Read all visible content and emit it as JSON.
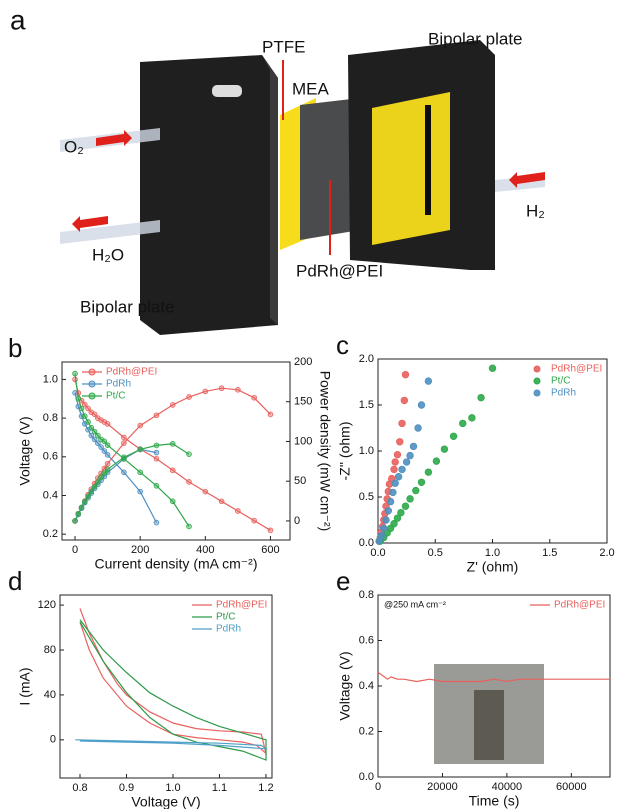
{
  "schematic": {
    "panel_label": "a",
    "labels": {
      "ptfe": "PTFE",
      "mea": "MEA",
      "bipolar_top": "Bipolar plate",
      "o2": "O₂",
      "h2o": "H₂O",
      "h2": "H₂",
      "catalyst": "PdRh@PEI",
      "bipolar_bottom": "Bipolar plate"
    }
  },
  "chart_data": [
    {
      "type": "line",
      "panel_label": "b",
      "xlabel": "Current density (mA cm⁻²)",
      "ylabel": "Voltage (V)",
      "y2label": "Power density (mW cm⁻²)",
      "xlim": [
        -40,
        660
      ],
      "xticks": [
        0,
        200,
        400,
        600
      ],
      "ylim": [
        0.17,
        1.09
      ],
      "yticks": [
        0.2,
        0.4,
        0.6,
        0.8,
        {
          "value": 1.0,
          "label": "1.0"
        }
      ],
      "y2lim": [
        -24,
        200
      ],
      "y2ticks": [
        0,
        50,
        100,
        150,
        200
      ],
      "legend": "upper left",
      "markers": true,
      "series": [
        {
          "name": "PdRh@PEI",
          "color": "#e8615d",
          "x": [
            0,
            10,
            20,
            30,
            40,
            50,
            60,
            70,
            80,
            90,
            100,
            150,
            200,
            250,
            300,
            350,
            400,
            450,
            500,
            550,
            600
          ],
          "values": [
            1.0,
            0.93,
            0.89,
            0.87,
            0.85,
            0.83,
            0.82,
            0.8,
            0.79,
            0.78,
            0.77,
            0.7,
            0.64,
            0.59,
            0.53,
            0.47,
            0.42,
            0.37,
            0.32,
            0.27,
            0.22
          ],
          "y2_values": [
            0,
            9,
            17,
            25,
            33,
            40,
            47,
            54,
            60,
            66,
            72,
            98,
            120,
            133,
            146,
            156,
            163,
            167,
            165,
            155,
            134
          ]
        },
        {
          "name": "PdRh",
          "color": "#4f8fc0",
          "x": [
            0,
            10,
            20,
            30,
            40,
            50,
            60,
            70,
            80,
            90,
            100,
            150,
            200,
            250
          ],
          "values": [
            0.93,
            0.86,
            0.81,
            0.77,
            0.74,
            0.71,
            0.69,
            0.67,
            0.65,
            0.63,
            0.61,
            0.52,
            0.42,
            0.26
          ],
          "y2_values": [
            0,
            8,
            16,
            23,
            29,
            35,
            41,
            46,
            51,
            56,
            61,
            78,
            90,
            86
          ]
        },
        {
          "name": "Pt/C",
          "color": "#2ea84a",
          "x": [
            0,
            10,
            20,
            30,
            40,
            50,
            60,
            70,
            80,
            90,
            100,
            150,
            200,
            250,
            300,
            350
          ],
          "values": [
            1.03,
            0.9,
            0.85,
            0.81,
            0.78,
            0.75,
            0.73,
            0.71,
            0.69,
            0.68,
            0.66,
            0.59,
            0.52,
            0.45,
            0.37,
            0.24
          ],
          "y2_values": [
            0,
            9,
            17,
            24,
            31,
            37,
            43,
            49,
            55,
            60,
            65,
            80,
            90,
            95,
            97,
            84
          ]
        }
      ]
    },
    {
      "type": "scatter",
      "panel_label": "c",
      "xlabel": "Z' (ohm)",
      "ylabel": "-Z'' (ohm)",
      "xlim": [
        0,
        2
      ],
      "xticks": [
        {
          "value": 0,
          "label": "0.0"
        },
        0.5,
        {
          "value": 1,
          "label": "1.0"
        },
        1.5,
        {
          "value": 2,
          "label": "2.0"
        }
      ],
      "ylim": [
        0,
        2
      ],
      "yticks": [
        {
          "value": 0,
          "label": "0.0"
        },
        0.5,
        {
          "value": 1,
          "label": "1.0"
        },
        1.5,
        {
          "value": 2,
          "label": "2.0"
        }
      ],
      "legend": "upper right",
      "markers": true,
      "series": [
        {
          "name": "PdRh@PEI",
          "color": "#e8615d",
          "x": [
            0.01,
            0.02,
            0.03,
            0.04,
            0.05,
            0.06,
            0.07,
            0.08,
            0.09,
            0.1,
            0.12,
            0.14,
            0.15,
            0.17,
            0.19,
            0.21,
            0.23,
            0.24
          ],
          "values": [
            0.02,
            0.06,
            0.12,
            0.18,
            0.25,
            0.32,
            0.4,
            0.48,
            0.56,
            0.64,
            0.7,
            0.8,
            0.88,
            0.96,
            1.1,
            1.3,
            1.55,
            1.83
          ]
        },
        {
          "name": "Pt/C",
          "color": "#2ea84a",
          "x": [
            0.02,
            0.05,
            0.08,
            0.11,
            0.14,
            0.17,
            0.2,
            0.24,
            0.28,
            0.33,
            0.38,
            0.44,
            0.51,
            0.58,
            0.66,
            0.74,
            0.82,
            0.9,
            1.0
          ],
          "values": [
            0.02,
            0.06,
            0.11,
            0.16,
            0.21,
            0.27,
            0.33,
            0.4,
            0.48,
            0.57,
            0.66,
            0.77,
            0.89,
            1.02,
            1.16,
            1.3,
            1.36,
            1.58,
            1.9
          ]
        },
        {
          "name": "PdRh",
          "color": "#4f8fc0",
          "x": [
            0.01,
            0.03,
            0.05,
            0.07,
            0.09,
            0.11,
            0.13,
            0.15,
            0.18,
            0.21,
            0.25,
            0.28,
            0.31,
            0.35,
            0.38,
            0.44
          ],
          "values": [
            0.02,
            0.08,
            0.16,
            0.25,
            0.35,
            0.45,
            0.55,
            0.65,
            0.72,
            0.8,
            0.88,
            0.95,
            1.05,
            1.25,
            1.5,
            1.76
          ]
        }
      ]
    },
    {
      "type": "line",
      "panel_label": "d",
      "xlabel": "Voltage (V)",
      "ylabel": "I (mA)",
      "xlim": [
        0.757,
        1.213
      ],
      "xticks": [
        0.8,
        0.9,
        {
          "value": 1.0,
          "label": "1.0"
        },
        1.1,
        1.2
      ],
      "ylim": [
        -34,
        129
      ],
      "yticks": [
        0,
        40,
        80,
        120
      ],
      "legend": "upper right",
      "markers": false,
      "series": [
        {
          "name": "PdRh@PEI",
          "color": "#e8615d",
          "x": [
            0.8,
            0.82,
            0.85,
            0.88,
            0.9,
            0.95,
            1.0,
            1.05,
            1.1,
            1.15,
            1.19,
            1.2,
            1.18,
            1.15,
            1.1,
            1.05,
            1.0,
            0.95,
            0.9,
            0.85,
            0.82,
            0.8
          ],
          "values": [
            117,
            95,
            70,
            50,
            40,
            25,
            15,
            10,
            8,
            7,
            5,
            -12,
            -5,
            -2,
            0,
            2,
            5,
            15,
            30,
            55,
            80,
            105
          ]
        },
        {
          "name": "Pt/C",
          "color": "#2e9a4a",
          "x": [
            0.8,
            0.85,
            0.9,
            0.95,
            1.0,
            1.05,
            1.1,
            1.15,
            1.2,
            1.2,
            1.15,
            1.1,
            1.05,
            1.0,
            0.95,
            0.9,
            0.85,
            0.8
          ],
          "values": [
            107,
            80,
            60,
            42,
            30,
            20,
            12,
            6,
            0,
            -18,
            -10,
            -6,
            -2,
            5,
            20,
            42,
            70,
            105
          ]
        },
        {
          "name": "PdRh",
          "color": "#4fa0c8",
          "x": [
            0.79,
            0.9,
            1.0,
            1.1,
            1.19,
            1.2,
            1.1,
            1.0,
            0.9,
            0.8
          ],
          "values": [
            0,
            -1,
            -2,
            -3,
            -5,
            -8,
            -5,
            -3,
            -2,
            -1
          ]
        }
      ]
    },
    {
      "type": "line",
      "panel_label": "e",
      "xlabel": "Time (s)",
      "ylabel": "Voltage (V)",
      "annotation": "@250 mA cm⁻²",
      "xlim": [
        0,
        72000
      ],
      "xticks": [
        0,
        20000,
        40000,
        60000
      ],
      "ylim": [
        0,
        0.8
      ],
      "yticks": [
        {
          "value": 0,
          "label": "0.0"
        },
        0.2,
        0.4,
        0.6,
        0.8
      ],
      "legend": "upper right",
      "markers": false,
      "series": [
        {
          "name": "PdRh@PEI",
          "color": "#e8615d",
          "x": [
            0,
            1000,
            2000,
            3000,
            4000,
            6000,
            8000,
            12000,
            16000,
            20000,
            24000,
            28000,
            32000,
            36000,
            40000,
            44000,
            48000,
            52000,
            56000,
            60000,
            64000,
            68000,
            72000
          ],
          "values": [
            0.46,
            0.45,
            0.44,
            0.43,
            0.44,
            0.43,
            0.43,
            0.42,
            0.43,
            0.42,
            0.42,
            0.42,
            0.42,
            0.43,
            0.42,
            0.43,
            0.43,
            0.43,
            0.43,
            0.43,
            0.43,
            0.43,
            0.43
          ]
        }
      ]
    }
  ]
}
